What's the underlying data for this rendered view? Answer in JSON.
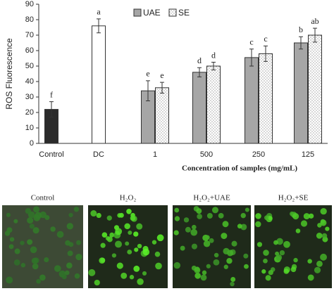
{
  "chart_data": {
    "type": "bar",
    "ylabel": "ROS Fluorescence",
    "xlabel": "Concentration of samples (mg/mL)",
    "categories": [
      "Control",
      "DC",
      "1",
      "500",
      "250",
      "125"
    ],
    "ylim": [
      0,
      90
    ],
    "yticks": [
      0,
      10,
      20,
      30,
      40,
      50,
      60,
      70,
      80,
      90
    ],
    "legend": "top",
    "series": [
      {
        "colors": [
          "#2b2b2b",
          "#ffffff",
          null,
          null,
          null,
          null
        ],
        "values": [
          22,
          76,
          null,
          null,
          null,
          null
        ],
        "errors": [
          5,
          4.5,
          null,
          null,
          null,
          null
        ],
        "letters": [
          "f",
          "a",
          null,
          null,
          null,
          null
        ]
      },
      {
        "name": "UAE",
        "color": "#a6a6a6",
        "values": [
          null,
          null,
          34,
          46,
          55.5,
          65
        ],
        "errors": [
          null,
          null,
          6.5,
          3,
          5.5,
          4
        ],
        "letters": [
          null,
          null,
          "e",
          "d",
          "c",
          "b"
        ]
      },
      {
        "name": "SE",
        "color": "#ffffff",
        "pattern": "dots",
        "values": [
          null,
          null,
          36,
          50,
          58,
          70
        ],
        "errors": [
          null,
          null,
          3.5,
          2.5,
          5,
          4.5
        ],
        "letters": [
          null,
          null,
          "e",
          "d",
          "c",
          "ab"
        ]
      }
    ]
  },
  "panels": [
    {
      "label": "Control"
    },
    {
      "label": "H₂O₂"
    },
    {
      "label": "H₂O₂+UAE"
    },
    {
      "label": "H₂O₂+SE"
    }
  ]
}
